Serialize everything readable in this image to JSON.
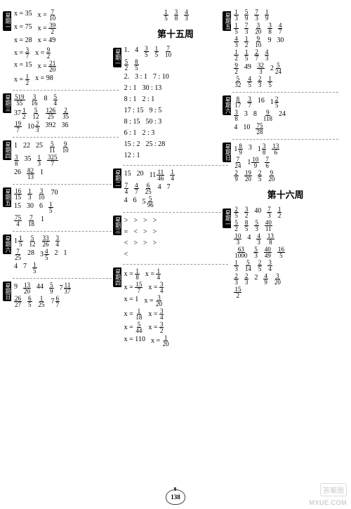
{
  "page_number": "138",
  "watermark": "MXUE.COM",
  "badge": "答案圈",
  "week15_title": "第十五周",
  "week16_title": "第十六周",
  "days": [
    "星期一",
    "星期二",
    "星期三",
    "星期四",
    "星期五",
    "星期六",
    "星期日"
  ],
  "col1": {
    "b1": [
      [
        "x = 35",
        "x =",
        "7",
        "10"
      ],
      [
        "x = 75",
        "x =",
        "39",
        "2"
      ],
      [
        "x = 28",
        "x = 49"
      ],
      [
        "x =",
        "3",
        "7",
        "x =",
        "9",
        "2"
      ],
      [
        "x = 15",
        "x =",
        "21",
        "20"
      ],
      [
        "x =",
        "1",
        "2",
        "x = 98"
      ]
    ],
    "b2": [
      [
        "519",
        "55",
        "3",
        "16",
        "8",
        "5",
        "4"
      ],
      [
        "37",
        "1",
        "2",
        "5",
        "12",
        "126",
        "25",
        "2",
        "35"
      ],
      [
        "19",
        "7",
        "10",
        "2",
        "3",
        "392",
        "36"
      ]
    ],
    "b3": [
      [
        "1",
        "22",
        "25",
        "5",
        "11",
        "9",
        "10"
      ],
      [
        "3",
        "8",
        "35",
        "1",
        "3",
        "325",
        "7"
      ],
      [
        "26",
        "82",
        "13",
        "1"
      ]
    ],
    "b4": [
      [
        "16",
        "15",
        "1",
        "3",
        "3",
        "10",
        "70"
      ],
      [
        "15",
        "30",
        "6",
        "1",
        "5"
      ],
      [
        "75",
        "4",
        "7",
        "18",
        "1"
      ]
    ],
    "b5": [
      [
        "1",
        "1",
        "5",
        "5",
        "12",
        "33",
        "26",
        "3",
        "4"
      ],
      [
        "7",
        "25",
        "28",
        "3",
        "4",
        "5",
        "2",
        "1"
      ],
      [
        "4",
        "7",
        "1",
        "5"
      ]
    ],
    "b6": [
      [
        "9",
        "13",
        "20",
        "44",
        "5",
        "9",
        "7",
        "11",
        "37"
      ],
      [
        "26",
        "27",
        "6",
        "5",
        "1",
        "25",
        "7",
        "6",
        "7"
      ]
    ]
  },
  "col2": {
    "top": [
      "1",
      "5",
      "3",
      "8",
      "4",
      "3"
    ],
    "b1": [
      [
        "1.",
        "4",
        "3",
        "5",
        "1",
        "5",
        "7",
        "10"
      ],
      [
        "5",
        "2",
        "8",
        "5"
      ],
      [
        "2.",
        "3 : 1",
        "7 : 10"
      ],
      [
        "2 : 1",
        "30 : 13"
      ],
      [
        "8 : 1",
        "2 : 1"
      ],
      [
        "17 : 15",
        "9 : 5"
      ],
      [
        "8 : 15",
        "50 : 3"
      ],
      [
        "6 : 1",
        "2 : 3"
      ],
      [
        "15 : 2",
        "25 : 28"
      ],
      [
        "12 : 1"
      ]
    ],
    "b2": [
      [
        "15",
        "20",
        "11",
        "11",
        "46",
        "1",
        "4"
      ],
      [
        "7",
        "4",
        "4",
        "7",
        "6",
        "25",
        "4",
        "7"
      ],
      [
        "4",
        "6",
        "5",
        "5",
        "96"
      ]
    ],
    "b3": [
      [
        ">",
        ">",
        ">",
        ">"
      ],
      [
        "=",
        "<",
        ">",
        ">"
      ],
      [
        "<",
        ">",
        ">",
        ">"
      ],
      [
        "<"
      ]
    ],
    "b4": [
      [
        "x =",
        "1",
        "8",
        "x =",
        "1",
        "4"
      ],
      [
        "x =",
        "15",
        "7",
        "x =",
        "3",
        "4"
      ],
      [
        "x = 1",
        "x =",
        "3",
        "20"
      ],
      [
        "x =",
        "1",
        "18",
        "x =",
        "3",
        "4"
      ],
      [
        "x =",
        "5",
        "44",
        "x =",
        "3",
        "2"
      ],
      [
        "x = 110",
        "x =",
        "1",
        "20"
      ]
    ]
  },
  "col3": {
    "b1": [
      [
        "1",
        "3",
        "5",
        "9",
        "7",
        "3",
        "1",
        "9"
      ],
      [
        "1",
        "5",
        "7",
        "3",
        "3",
        "20",
        "3",
        "8",
        "4",
        "7"
      ],
      [
        "4",
        "3",
        "1",
        "2",
        "9",
        "10",
        "9",
        "30"
      ],
      [
        "1",
        "2",
        "1",
        "5",
        "2",
        "7",
        "4",
        "3"
      ],
      [
        "9",
        "2",
        "49",
        "32",
        "3",
        "2",
        "5",
        "24"
      ],
      [
        "5",
        "32",
        "4",
        "5",
        "2",
        "3",
        "1",
        "5"
      ]
    ],
    "b2": [
      [
        "8",
        "17",
        "3",
        "7",
        "16",
        "1",
        "2",
        "5"
      ],
      [
        "3",
        "8",
        "3",
        "8",
        "9",
        "118",
        "24"
      ],
      [
        "4",
        "10",
        "75",
        "28"
      ]
    ],
    "b3": [
      [
        "1",
        "8",
        "9",
        "3",
        "1",
        "3",
        "8",
        "13",
        "6"
      ],
      [
        "7",
        "24",
        "1",
        "10",
        "9",
        "7",
        "6"
      ],
      [
        "2",
        "9",
        "19",
        "20",
        "2",
        "5",
        "9",
        "20"
      ]
    ],
    "b4": [
      [
        "2",
        "5",
        "3",
        "2",
        "40",
        "7",
        "3",
        "1",
        "2"
      ],
      [
        "5",
        "2",
        "8",
        "5",
        "5",
        "3",
        "40",
        "11"
      ],
      [
        "10",
        "3",
        "4",
        "4",
        "3",
        "13",
        "8"
      ],
      [
        "63",
        "1000",
        "5",
        "3",
        "40",
        "49",
        "16",
        "5"
      ],
      [
        "1",
        "3",
        "5",
        "14",
        "2",
        "5",
        "3",
        "4"
      ],
      [
        "2",
        "3",
        "2",
        "3",
        "2",
        "4",
        "9",
        "3",
        "20"
      ],
      [
        "15",
        "2"
      ]
    ]
  }
}
